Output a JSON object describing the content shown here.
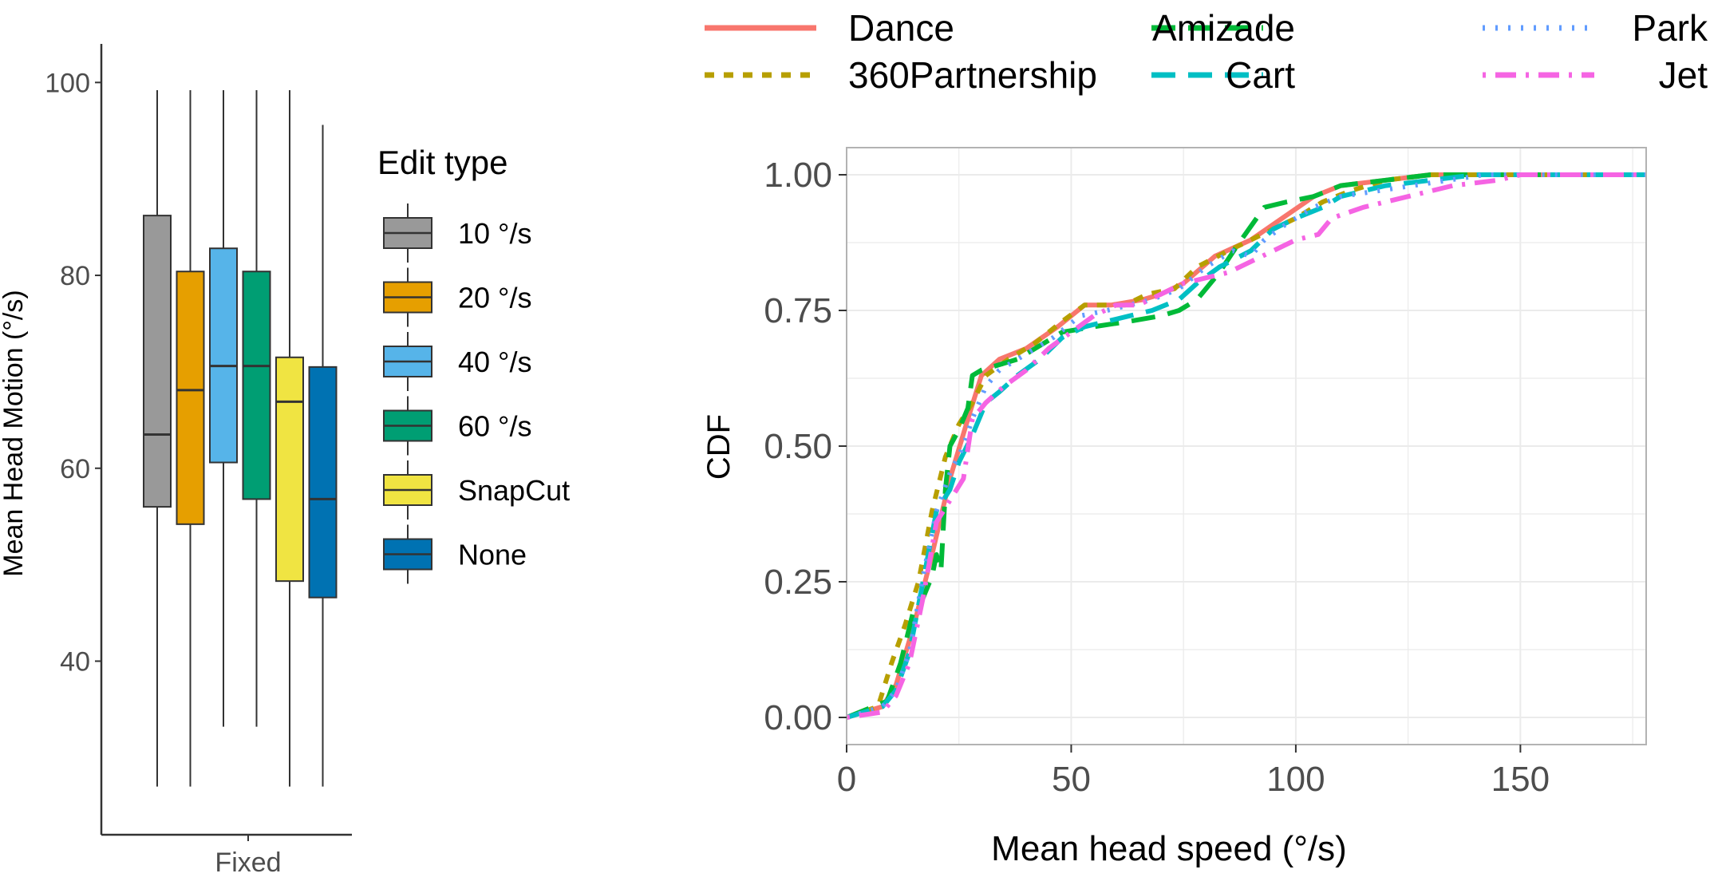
{
  "chart_data": [
    {
      "type": "box",
      "title": "",
      "ylabel": "Mean Head Motion (°/s)",
      "xlabel": "",
      "categories": [
        "Fixed"
      ],
      "ylim": [
        22,
        104
      ],
      "yticks": [
        40,
        60,
        80,
        100
      ],
      "legend": {
        "title": "Edit type",
        "position": "right",
        "entries": [
          "10 °/s",
          "20 °/s",
          "40 °/s",
          "60 °/s",
          "SnapCut",
          "None"
        ]
      },
      "series": [
        {
          "name": "10 °/s",
          "color": "#999999",
          "whisker_low": 27,
          "q1": 56,
          "median": 63.5,
          "q3": 86.2,
          "whisker_high": 99.2
        },
        {
          "name": "20 °/s",
          "color": "#E69F00",
          "whisker_low": 27,
          "q1": 54.2,
          "median": 68.1,
          "q3": 80.4,
          "whisker_high": 99.2
        },
        {
          "name": "40 °/s",
          "color": "#56B4E9",
          "whisker_low": 33.2,
          "q1": 60.6,
          "median": 70.6,
          "q3": 82.8,
          "whisker_high": 99.2
        },
        {
          "name": "60 °/s",
          "color": "#009E73",
          "whisker_low": 33.2,
          "q1": 56.8,
          "median": 70.6,
          "q3": 80.4,
          "whisker_high": 99.2
        },
        {
          "name": "SnapCut",
          "color": "#F0E442",
          "whisker_low": 27,
          "q1": 48.3,
          "median": 66.9,
          "q3": 71.5,
          "whisker_high": 99.2
        },
        {
          "name": "None",
          "color": "#0072B2",
          "whisker_low": 27,
          "q1": 46.6,
          "median": 56.8,
          "q3": 70.5,
          "whisker_high": 95.6
        }
      ]
    },
    {
      "type": "line",
      "title": "",
      "xlabel": "Mean head speed (°/s)",
      "ylabel": "CDF",
      "xlim": [
        0,
        178
      ],
      "ylim": [
        -0.05,
        1.05
      ],
      "xticks": [
        0,
        50,
        100,
        150
      ],
      "yticks": [
        0.0,
        0.25,
        0.5,
        0.75,
        1.0
      ],
      "ytick_labels": [
        "0.00",
        "0.25",
        "0.50",
        "0.75",
        "1.00"
      ],
      "grid": true,
      "legend": {
        "position": "top"
      },
      "series": [
        {
          "name": "Dance",
          "color": "#F8766D",
          "dash": "solid",
          "x": [
            0,
            8,
            11,
            15,
            19,
            23,
            27,
            30,
            34,
            40,
            47,
            53,
            59,
            66,
            70,
            75,
            82,
            90,
            97,
            104,
            110,
            120,
            130,
            140,
            150,
            178
          ],
          "y": [
            0,
            0.02,
            0.06,
            0.17,
            0.3,
            0.44,
            0.55,
            0.63,
            0.66,
            0.68,
            0.72,
            0.76,
            0.76,
            0.77,
            0.78,
            0.8,
            0.85,
            0.88,
            0.92,
            0.96,
            0.98,
            0.99,
            1.0,
            1.0,
            1.0,
            1.0
          ]
        },
        {
          "name": "360Partnership",
          "color": "#B79F00",
          "dash": "short",
          "x": [
            0,
            7,
            10,
            13,
            16,
            19,
            22,
            25,
            28,
            31,
            36,
            42,
            48,
            53,
            58,
            62,
            67,
            73,
            78,
            85,
            90,
            95,
            100,
            106,
            112,
            120,
            130,
            140,
            150,
            178
          ],
          "y": [
            0,
            0.02,
            0.1,
            0.17,
            0.25,
            0.38,
            0.48,
            0.54,
            0.58,
            0.63,
            0.66,
            0.69,
            0.73,
            0.76,
            0.76,
            0.76,
            0.78,
            0.79,
            0.83,
            0.86,
            0.88,
            0.9,
            0.92,
            0.95,
            0.97,
            0.99,
            1.0,
            1.0,
            1.0,
            1.0
          ]
        },
        {
          "name": "Amizade",
          "color": "#00BA38",
          "dash": "long",
          "x": [
            0,
            9,
            12,
            15,
            17,
            19,
            20,
            21,
            22,
            23,
            25,
            27,
            28,
            30,
            34,
            38,
            42,
            48,
            55,
            63,
            70,
            74,
            78,
            83,
            87,
            93,
            98,
            104,
            110,
            120,
            130,
            140,
            150,
            178
          ],
          "y": [
            0,
            0.03,
            0.1,
            0.2,
            0.22,
            0.26,
            0.3,
            0.27,
            0.42,
            0.5,
            0.53,
            0.57,
            0.63,
            0.64,
            0.65,
            0.66,
            0.68,
            0.71,
            0.72,
            0.73,
            0.74,
            0.75,
            0.77,
            0.82,
            0.87,
            0.94,
            0.95,
            0.96,
            0.98,
            0.99,
            1.0,
            1.0,
            1.0,
            1.0
          ]
        },
        {
          "name": "Cart",
          "color": "#00BFC4",
          "dash": "long",
          "x": [
            0,
            8,
            11,
            14,
            17,
            20,
            23,
            25,
            28,
            31,
            34,
            38,
            43,
            48,
            53,
            58,
            63,
            68,
            74,
            78,
            83,
            90,
            95,
            100,
            106,
            110,
            120,
            130,
            140,
            150,
            178
          ],
          "y": [
            0,
            0.02,
            0.05,
            0.12,
            0.25,
            0.38,
            0.42,
            0.47,
            0.52,
            0.58,
            0.6,
            0.63,
            0.66,
            0.7,
            0.72,
            0.73,
            0.74,
            0.75,
            0.77,
            0.8,
            0.83,
            0.86,
            0.9,
            0.92,
            0.94,
            0.96,
            0.98,
            0.99,
            1.0,
            1.0,
            1.0
          ]
        },
        {
          "name": "Park",
          "color": "#619CFF",
          "dash": "dot",
          "x": [
            0,
            8,
            11,
            14,
            17,
            20,
            23,
            26,
            28,
            31,
            34,
            40,
            46,
            52,
            58,
            63,
            68,
            74,
            80,
            86,
            90,
            93,
            98,
            104,
            110,
            118,
            126,
            134,
            142,
            150,
            178
          ],
          "y": [
            0,
            0.02,
            0.05,
            0.12,
            0.26,
            0.38,
            0.45,
            0.5,
            0.55,
            0.61,
            0.64,
            0.67,
            0.7,
            0.74,
            0.75,
            0.76,
            0.77,
            0.79,
            0.83,
            0.86,
            0.85,
            0.88,
            0.91,
            0.94,
            0.96,
            0.97,
            0.98,
            0.99,
            1.0,
            1.0,
            1.0
          ]
        },
        {
          "name": "Jet",
          "color": "#F564E3",
          "dash": "dotdash",
          "x": [
            0,
            8,
            11,
            14,
            17,
            20,
            23,
            26,
            28,
            31,
            35,
            40,
            45,
            50,
            55,
            60,
            65,
            70,
            75,
            80,
            85,
            90,
            95,
            100,
            105,
            108,
            115,
            125,
            135,
            145,
            150,
            178
          ],
          "y": [
            0,
            0.01,
            0.04,
            0.1,
            0.22,
            0.36,
            0.4,
            0.44,
            0.55,
            0.58,
            0.61,
            0.64,
            0.68,
            0.71,
            0.74,
            0.76,
            0.76,
            0.78,
            0.8,
            0.81,
            0.82,
            0.84,
            0.86,
            0.88,
            0.89,
            0.92,
            0.94,
            0.96,
            0.98,
            0.99,
            1.0,
            1.0
          ]
        }
      ]
    }
  ]
}
